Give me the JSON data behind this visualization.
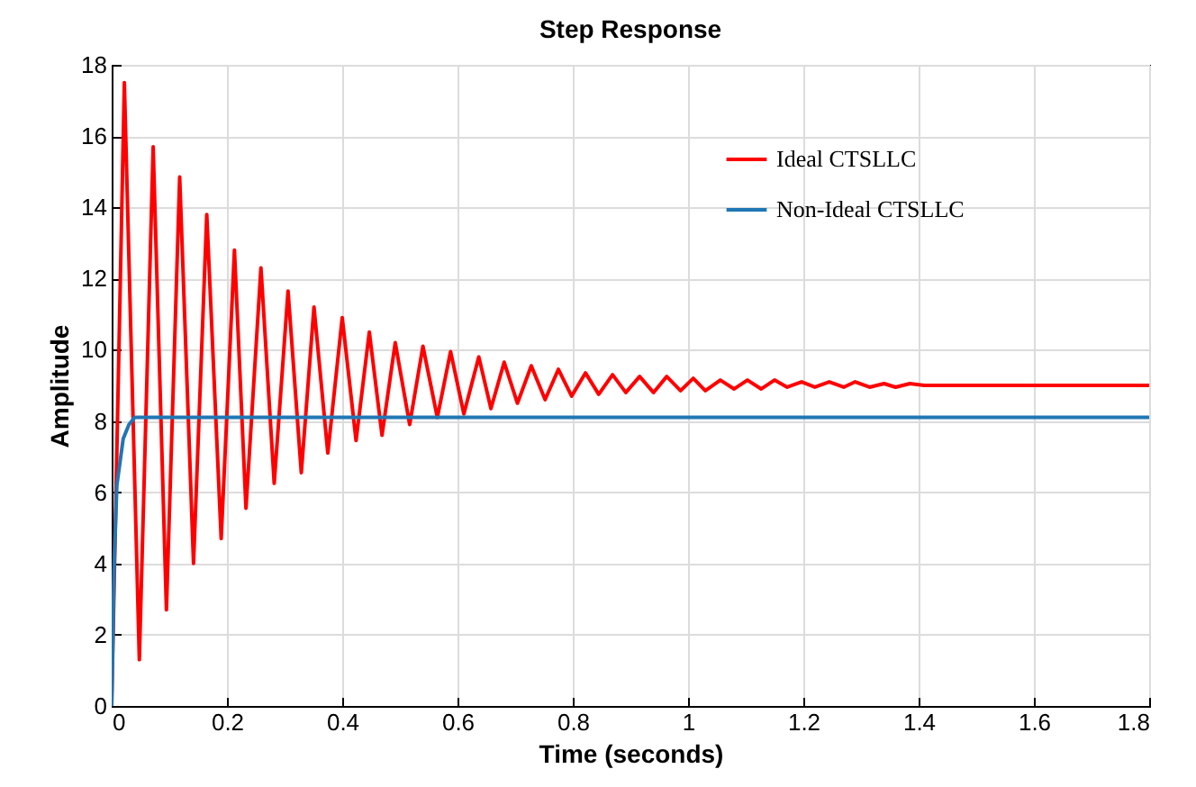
{
  "chart_data": {
    "type": "line",
    "title": "Step Response",
    "xlabel": "Time (seconds)",
    "ylabel": "Amplitude",
    "series": [
      {
        "name": "Ideal CTSLLC",
        "color": "#ff0000",
        "x": [
          0,
          0.022,
          0.048,
          0.072,
          0.095,
          0.118,
          0.142,
          0.165,
          0.19,
          0.213,
          0.233,
          0.259,
          0.282,
          0.306,
          0.329,
          0.351,
          0.375,
          0.4,
          0.424,
          0.447,
          0.469,
          0.492,
          0.517,
          0.54,
          0.565,
          0.588,
          0.611,
          0.637,
          0.658,
          0.681,
          0.704,
          0.728,
          0.752,
          0.775,
          0.798,
          0.822,
          0.845,
          0.869,
          0.892,
          0.916,
          0.94,
          0.963,
          0.987,
          1.009,
          1.03,
          1.056,
          1.08,
          1.103,
          1.127,
          1.15,
          1.172,
          1.197,
          1.22,
          1.245,
          1.27,
          1.29,
          1.315,
          1.34,
          1.36,
          1.385,
          1.41,
          1.45,
          1.5,
          1.8
        ],
        "values": [
          0,
          17.5,
          1.3,
          15.7,
          2.7,
          14.85,
          4.0,
          13.8,
          4.7,
          12.8,
          5.55,
          12.3,
          6.25,
          11.65,
          6.55,
          11.2,
          7.1,
          10.9,
          7.45,
          10.5,
          7.6,
          10.2,
          7.9,
          10.1,
          8.1,
          9.95,
          8.2,
          9.8,
          8.35,
          9.65,
          8.5,
          9.55,
          8.6,
          9.45,
          8.7,
          9.35,
          8.75,
          9.3,
          8.8,
          9.25,
          8.8,
          9.25,
          8.85,
          9.2,
          8.85,
          9.15,
          8.9,
          9.15,
          8.9,
          9.15,
          8.95,
          9.1,
          8.95,
          9.1,
          8.95,
          9.1,
          8.95,
          9.05,
          8.95,
          9.05,
          9.0,
          9.0,
          9.0,
          9.0
        ]
      },
      {
        "name": "Non-Ideal CTSLLC",
        "color": "#1f77b4",
        "x": [
          0,
          0.004,
          0.009,
          0.02,
          0.03,
          0.04,
          1.8
        ],
        "values": [
          0,
          3.8,
          6.2,
          7.5,
          7.9,
          8.1,
          8.1
        ]
      }
    ],
    "xlim": [
      0,
      1.8
    ],
    "xticks": [
      0,
      0.2,
      0.4,
      0.6,
      0.8,
      1,
      1.2,
      1.4,
      1.6,
      1.8
    ],
    "ylim": [
      0,
      18
    ],
    "yticks": [
      0,
      2,
      4,
      6,
      8,
      10,
      12,
      14,
      16,
      18
    ],
    "grid": true,
    "legend": "top right",
    "marker": "none",
    "line_style": "solid"
  }
}
